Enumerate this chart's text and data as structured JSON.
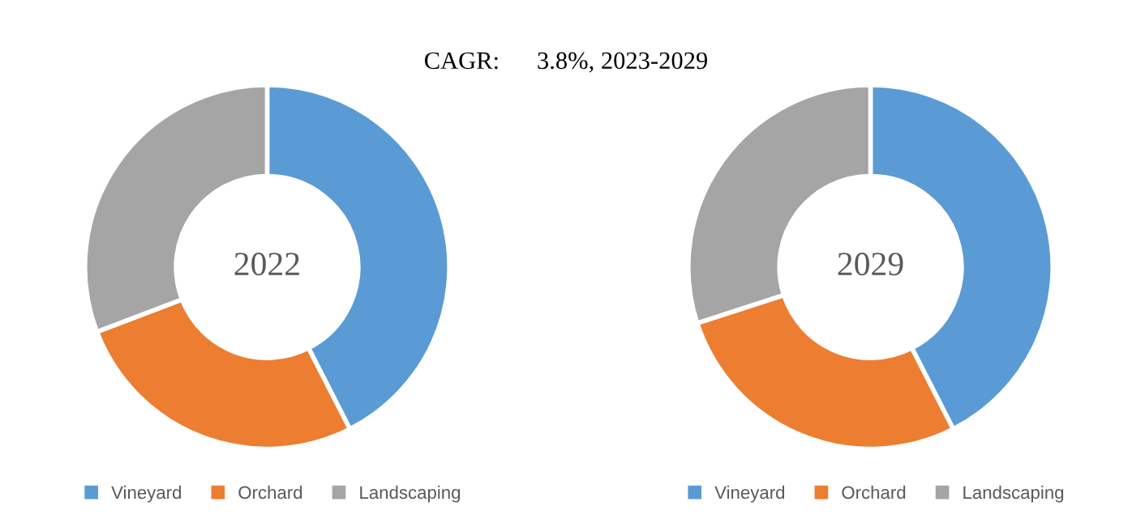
{
  "chart_data": [
    {
      "type": "donut",
      "title": "2022",
      "annotations": [
        "CAGR:      3.8%, 2023-2029"
      ],
      "categories": [
        "Vineyard",
        "Orchard",
        "Landscaping"
      ],
      "values": [
        42.5,
        26.7,
        30.8
      ],
      "colors": [
        "#5b9bd5",
        "#ed7d31",
        "#a5a5a5"
      ],
      "legend": "bottom"
    },
    {
      "type": "donut",
      "title": "2029",
      "categories": [
        "Vineyard",
        "Orchard",
        "Landscaping"
      ],
      "values": [
        42.5,
        27.5,
        30.0
      ],
      "colors": [
        "#5b9bd5",
        "#ed7d31",
        "#a5a5a5"
      ],
      "legend": "bottom"
    }
  ]
}
